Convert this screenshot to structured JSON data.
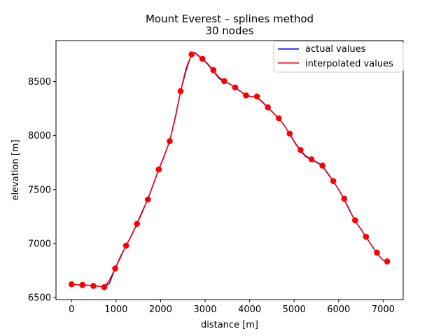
{
  "chart_data": {
    "type": "line",
    "title": "Mount Everest – splines method",
    "subtitle": "30 nodes",
    "xlabel": "distance [m]",
    "ylabel": "elevation [m]",
    "xlim": [
      -350,
      7450
    ],
    "ylim": [
      6480,
      8880
    ],
    "xticks": [
      0,
      1000,
      2000,
      3000,
      4000,
      5000,
      6000,
      7000
    ],
    "yticks": [
      6500,
      7000,
      7500,
      8000,
      8500
    ],
    "grid": false,
    "legend_position": "top-right",
    "series": [
      {
        "name": "actual values",
        "color": "#0000ff",
        "x": [
          0,
          120,
          240,
          370,
          490,
          620,
          735,
          850,
          980,
          1100,
          1220,
          1350,
          1470,
          1590,
          1710,
          1830,
          1960,
          2080,
          2200,
          2330,
          2450,
          2570,
          2695,
          2770,
          2840,
          2940,
          3060,
          3180,
          3310,
          3430,
          3550,
          3670,
          3790,
          3920,
          4040,
          4160,
          4280,
          4410,
          4530,
          4650,
          4770,
          4900,
          5020,
          5140,
          5260,
          5390,
          5510,
          5630,
          5750,
          5880,
          6000,
          6120,
          6240,
          6360,
          6490,
          6610,
          6730,
          6850,
          6980,
          7090
        ],
        "y": [
          6620,
          6617,
          6615,
          6612,
          6608,
          6604,
          6598,
          6630,
          6770,
          6880,
          6975,
          7080,
          7185,
          7300,
          7405,
          7540,
          7690,
          7810,
          7945,
          8170,
          8410,
          8600,
          8755,
          8770,
          8745,
          8710,
          8660,
          8600,
          8530,
          8500,
          8480,
          8445,
          8410,
          8370,
          8360,
          8355,
          8310,
          8260,
          8210,
          8160,
          8100,
          8015,
          7930,
          7860,
          7805,
          7775,
          7750,
          7720,
          7650,
          7575,
          7500,
          7410,
          7310,
          7215,
          7140,
          7060,
          6990,
          6915,
          6850,
          6832
        ]
      },
      {
        "name": "interpolated values",
        "color": "#ff0000",
        "x": [
          0,
          120,
          240,
          370,
          490,
          620,
          735,
          850,
          980,
          1100,
          1220,
          1350,
          1470,
          1590,
          1710,
          1830,
          1960,
          2080,
          2200,
          2330,
          2450,
          2570,
          2695,
          2770,
          2840,
          2940,
          3060,
          3180,
          3310,
          3430,
          3550,
          3670,
          3790,
          3920,
          4040,
          4160,
          4280,
          4410,
          4530,
          4650,
          4770,
          4900,
          5020,
          5140,
          5260,
          5390,
          5510,
          5630,
          5750,
          5880,
          6000,
          6120,
          6240,
          6360,
          6490,
          6610,
          6730,
          6850,
          6980,
          7090
        ],
        "y": [
          6622,
          6618,
          6616,
          6613,
          6607,
          6602,
          6596,
          6660,
          6768,
          6870,
          6978,
          7075,
          7182,
          7290,
          7408,
          7545,
          7686,
          7805,
          7948,
          8160,
          8412,
          8620,
          8752,
          8768,
          8740,
          8712,
          8665,
          8607,
          8540,
          8505,
          8478,
          8446,
          8412,
          8372,
          8362,
          8357,
          8315,
          8262,
          8212,
          8160,
          8098,
          8018,
          7935,
          7866,
          7812,
          7780,
          7755,
          7722,
          7655,
          7578,
          7500,
          7415,
          7315,
          7215,
          7138,
          7062,
          6990,
          6915,
          6852,
          6834
        ]
      }
    ],
    "nodes": {
      "color": "#ff0000",
      "x": [
        0,
        245,
        490,
        735,
        980,
        1225,
        1470,
        1715,
        1960,
        2205,
        2450,
        2695,
        2940,
        3185,
        3430,
        3675,
        3920,
        4165,
        4410,
        4655,
        4900,
        5145,
        5390,
        5635,
        5880,
        6125,
        6370,
        6615,
        6860,
        7090
      ],
      "y": [
        6622,
        6616,
        6607,
        6596,
        6768,
        6980,
        7182,
        7408,
        7686,
        7948,
        8412,
        8752,
        8712,
        8607,
        8505,
        8446,
        8372,
        8362,
        8262,
        8160,
        8018,
        7866,
        7780,
        7722,
        7578,
        7415,
        7215,
        7062,
        6915,
        6834
      ]
    }
  }
}
